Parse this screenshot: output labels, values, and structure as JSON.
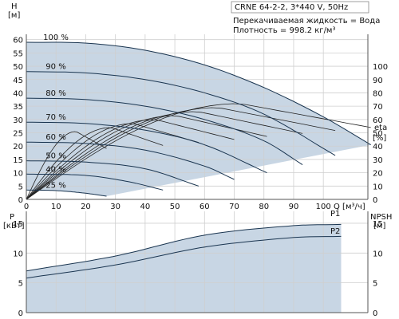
{
  "chart_data": [
    {
      "type": "line",
      "title": "CRNE 64-2-2, 3*440 V, 50Hz",
      "notes": [
        "Перекачиваемая жидкость = Вода",
        "Плотность = 998.2 кг/м³"
      ],
      "xlabel": "Q [м³/ч]",
      "x_ticks": [
        0,
        10,
        20,
        30,
        40,
        50,
        60,
        70,
        80,
        90,
        100
      ],
      "xlim": [
        0,
        115
      ],
      "ylabel": [
        "H",
        "[м]"
      ],
      "ylim": [
        0,
        62
      ],
      "y_ticks": [
        0,
        5,
        10,
        15,
        20,
        25,
        30,
        35,
        40,
        45,
        50,
        55,
        60
      ],
      "y2label": [
        "eta",
        "[%]"
      ],
      "y2lim": [
        0,
        124
      ],
      "y2_ticks": [
        0,
        10,
        20,
        30,
        40,
        50,
        60,
        70,
        80,
        90,
        100
      ],
      "grid": true,
      "speed_labels": [
        "100 %",
        "90 %",
        "80 %",
        "70 %",
        "60 %",
        "50 %",
        "40 %",
        "25 %"
      ],
      "series": [
        {
          "name": "100 %",
          "shut_off_head": 59,
          "q_max": 116,
          "end_head": 20.5,
          "values_at": {
            "x": [
              0,
              20,
              40,
              60,
              80,
              100,
              116
            ],
            "y": [
              59,
              58.7,
              56,
              50.5,
              42,
              31,
              20.5
            ]
          }
        },
        {
          "name": "90 %",
          "shut_off_head": 48,
          "q_max": 104,
          "end_head": 16.5,
          "values_at": {
            "x": [
              0,
              20,
              40,
              60,
              80,
              104
            ],
            "y": [
              48,
              47.5,
              45,
              40,
              32,
              16.5
            ]
          }
        },
        {
          "name": "80 %",
          "shut_off_head": 38,
          "q_max": 93,
          "end_head": 13,
          "values_at": {
            "x": [
              0,
              20,
              40,
              60,
              80,
              93
            ],
            "y": [
              38,
              37.5,
              35,
              30,
              22,
              13
            ]
          }
        },
        {
          "name": "70 %",
          "shut_off_head": 29,
          "q_max": 81,
          "end_head": 10,
          "values_at": {
            "x": [
              0,
              20,
              40,
              60,
              81
            ],
            "y": [
              29,
              28.5,
              26,
              20.5,
              10
            ]
          }
        },
        {
          "name": "60 %",
          "shut_off_head": 21.5,
          "q_max": 70,
          "end_head": 7.5,
          "values_at": {
            "x": [
              0,
              20,
              40,
              60,
              70
            ],
            "y": [
              21.5,
              21,
              18.5,
              12.5,
              7.5
            ]
          }
        },
        {
          "name": "50 %",
          "shut_off_head": 14.5,
          "q_max": 58,
          "end_head": 5,
          "values_at": {
            "x": [
              0,
              20,
              40,
              58
            ],
            "y": [
              14.5,
              14,
              11.5,
              5
            ]
          }
        },
        {
          "name": "40 %",
          "shut_off_head": 9.5,
          "q_max": 46,
          "end_head": 3.5,
          "values_at": {
            "x": [
              0,
              20,
              35,
              46
            ],
            "y": [
              9.5,
              9,
              6.5,
              3.5
            ]
          }
        },
        {
          "name": "25 %",
          "shut_off_head": 3.5,
          "q_max": 27,
          "end_head": 1.2,
          "values_at": {
            "x": [
              0,
              10,
              20,
              27
            ],
            "y": [
              3.5,
              3.3,
              2.3,
              1.2
            ]
          }
        }
      ]
    },
    {
      "type": "line",
      "ylabel": [
        "P",
        "[кВт]"
      ],
      "ylim": [
        0,
        17
      ],
      "y_ticks": [
        0,
        5,
        10,
        15
      ],
      "y2label": [
        "NPSH",
        "[м]"
      ],
      "y2_ticks": [
        0,
        5,
        10,
        15
      ],
      "x_ticks": [
        0,
        10,
        20,
        30,
        40,
        50,
        60,
        70,
        80,
        90,
        100
      ],
      "xlim": [
        0,
        115
      ],
      "grid": true,
      "series": [
        {
          "name": "P1",
          "values_at": {
            "x": [
              0,
              30,
              60,
              90,
              106
            ],
            "y": [
              7,
              9.5,
              13,
              14.6,
              14.8
            ]
          }
        },
        {
          "name": "P2",
          "values_at": {
            "x": [
              0,
              30,
              60,
              90,
              106
            ],
            "y": [
              5.8,
              8,
              11,
              12.6,
              12.8
            ]
          }
        }
      ]
    }
  ]
}
